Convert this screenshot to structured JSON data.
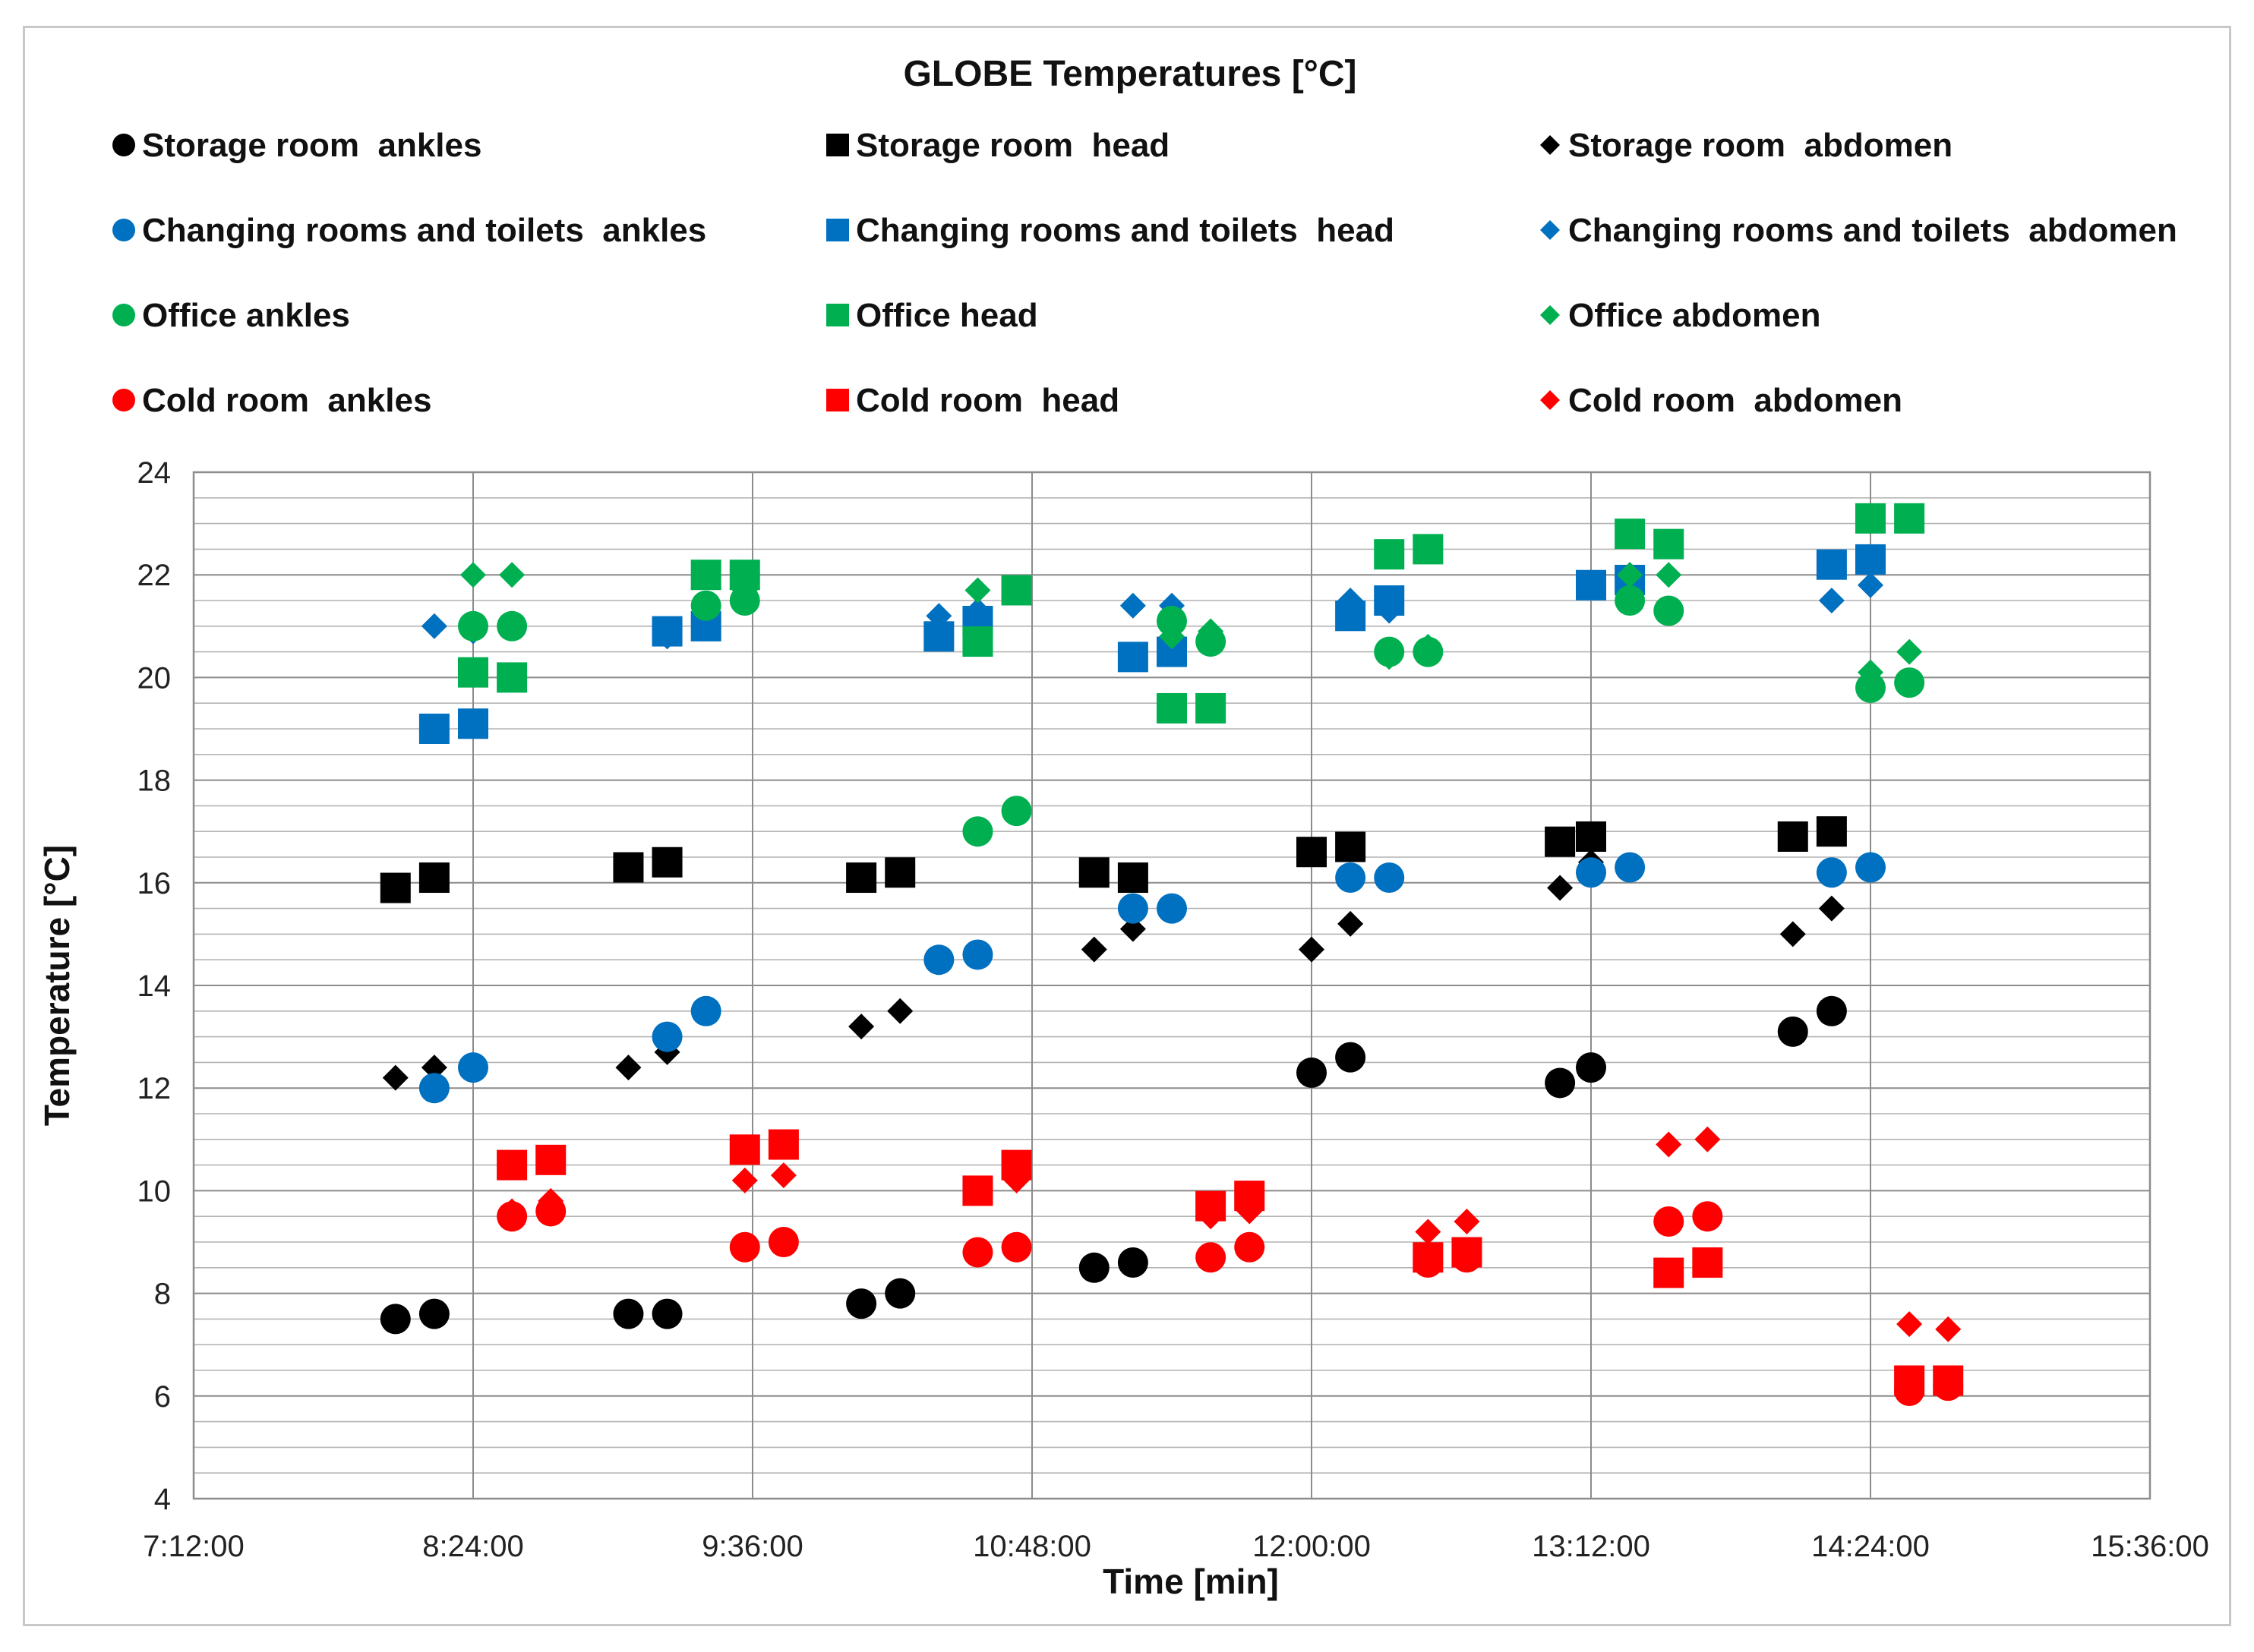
{
  "chart_data": {
    "type": "scatter",
    "title": "GLOBE Temperatures [°C]",
    "xlabel": "Time [min]",
    "ylabel": "Temperature [°C]",
    "xlim": [
      "7:12:00",
      "15:36:00"
    ],
    "x_ticks": [
      "7:12:00",
      "8:24:00",
      "9:36:00",
      "10:48:00",
      "12:00:00",
      "13:12:00",
      "14:24:00",
      "15:36:00"
    ],
    "ylim": [
      4,
      24
    ],
    "y_ticks": [
      4,
      6,
      8,
      10,
      12,
      14,
      16,
      18,
      20,
      22,
      24
    ],
    "grid": true,
    "legend_position": "top",
    "series": [
      {
        "name": "Storage room  ankles",
        "marker": "circle",
        "color": "#000000",
        "x": [
          "8:04:00",
          "8:14:00",
          "9:04:00",
          "9:14:00",
          "10:04:00",
          "10:14:00",
          "11:04:00",
          "11:14:00",
          "12:00:00",
          "12:10:00",
          "13:04:00",
          "13:12:00",
          "14:04:00",
          "14:14:00"
        ],
        "y": [
          7.5,
          7.6,
          7.6,
          7.6,
          7.8,
          8.0,
          8.5,
          8.6,
          12.3,
          12.6,
          12.1,
          12.4,
          13.1,
          13.5
        ]
      },
      {
        "name": "Storage room  head",
        "marker": "square",
        "color": "#000000",
        "x": [
          "8:04:00",
          "8:14:00",
          "9:04:00",
          "9:14:00",
          "10:04:00",
          "10:14:00",
          "11:04:00",
          "11:14:00",
          "12:00:00",
          "12:10:00",
          "13:04:00",
          "13:12:00",
          "14:04:00",
          "14:14:00"
        ],
        "y": [
          15.9,
          16.1,
          16.3,
          16.4,
          16.1,
          16.2,
          16.2,
          16.1,
          16.6,
          16.7,
          16.8,
          16.9,
          16.9,
          17.0
        ]
      },
      {
        "name": "Storage room  abdomen",
        "marker": "diamond",
        "color": "#000000",
        "x": [
          "8:04:00",
          "8:14:00",
          "9:04:00",
          "9:14:00",
          "10:04:00",
          "10:14:00",
          "11:04:00",
          "11:14:00",
          "12:00:00",
          "12:10:00",
          "13:04:00",
          "13:12:00",
          "14:04:00",
          "14:14:00"
        ],
        "y": [
          12.2,
          12.4,
          12.4,
          12.7,
          13.2,
          13.5,
          14.7,
          15.1,
          14.7,
          15.2,
          15.9,
          16.4,
          15.0,
          15.5
        ]
      },
      {
        "name": "Changing rooms and toilets  ankles",
        "marker": "circle",
        "color": "#0070C0",
        "x": [
          "8:14:00",
          "8:24:00",
          "9:14:00",
          "9:24:00",
          "10:24:00",
          "10:34:00",
          "11:14:00",
          "11:24:00",
          "12:10:00",
          "12:20:00",
          "13:12:00",
          "13:22:00",
          "14:14:00",
          "14:24:00"
        ],
        "y": [
          12.0,
          12.4,
          13.0,
          13.5,
          14.5,
          14.6,
          15.5,
          15.5,
          16.1,
          16.1,
          16.2,
          16.3,
          16.2,
          16.3
        ]
      },
      {
        "name": "Changing rooms and toilets  head",
        "marker": "square",
        "color": "#0070C0",
        "x": [
          "8:14:00",
          "8:24:00",
          "9:14:00",
          "9:24:00",
          "10:24:00",
          "10:34:00",
          "11:14:00",
          "11:24:00",
          "12:10:00",
          "12:20:00",
          "13:12:00",
          "13:22:00",
          "14:14:00",
          "14:24:00"
        ],
        "y": [
          19.0,
          19.1,
          20.9,
          21.0,
          20.8,
          21.1,
          20.4,
          20.5,
          21.2,
          21.5,
          21.8,
          21.9,
          22.2,
          22.3
        ]
      },
      {
        "name": "Changing rooms and toilets  abdomen",
        "marker": "diamond",
        "color": "#0070C0",
        "x": [
          "8:14:00",
          "8:24:00",
          "9:14:00",
          "9:24:00",
          "10:24:00",
          "10:34:00",
          "11:14:00",
          "11:24:00",
          "12:10:00",
          "12:20:00",
          "13:12:00",
          "13:22:00",
          "14:14:00",
          "14:24:00"
        ],
        "y": [
          21.0,
          20.9,
          20.8,
          21.1,
          21.2,
          21.3,
          21.4,
          21.4,
          21.5,
          21.3,
          21.8,
          22.0,
          21.5,
          21.8
        ]
      },
      {
        "name": "Office ankles",
        "marker": "circle",
        "color": "#00B050",
        "x": [
          "8:24:00",
          "8:34:00",
          "9:24:00",
          "9:34:00",
          "10:34:00",
          "10:44:00",
          "11:24:00",
          "11:34:00",
          "12:20:00",
          "12:30:00",
          "13:22:00",
          "13:32:00",
          "14:24:00",
          "14:34:00"
        ],
        "y": [
          21.0,
          21.0,
          21.4,
          21.5,
          17.0,
          17.4,
          21.1,
          20.7,
          20.5,
          20.5,
          21.5,
          21.3,
          19.8,
          19.9
        ]
      },
      {
        "name": "Office head",
        "marker": "square",
        "color": "#00B050",
        "x": [
          "8:24:00",
          "8:34:00",
          "9:24:00",
          "9:34:00",
          "10:34:00",
          "10:44:00",
          "11:24:00",
          "11:34:00",
          "12:20:00",
          "12:30:00",
          "13:22:00",
          "13:32:00",
          "14:24:00",
          "14:34:00"
        ],
        "y": [
          20.1,
          20.0,
          22.0,
          22.0,
          20.7,
          21.7,
          19.4,
          19.4,
          22.4,
          22.5,
          22.8,
          22.6,
          23.1,
          23.1
        ]
      },
      {
        "name": "Office abdomen",
        "marker": "diamond",
        "color": "#00B050",
        "x": [
          "8:24:00",
          "8:34:00",
          "9:24:00",
          "9:34:00",
          "10:34:00",
          "10:44:00",
          "11:24:00",
          "11:34:00",
          "12:20:00",
          "12:30:00",
          "13:22:00",
          "13:32:00",
          "14:24:00",
          "14:34:00"
        ],
        "y": [
          22.0,
          22.0,
          21.4,
          21.7,
          21.7,
          21.7,
          20.8,
          20.9,
          20.4,
          20.6,
          22.0,
          22.0,
          20.1,
          20.5
        ]
      },
      {
        "name": "Cold room  ankles",
        "marker": "circle",
        "color": "#FF0000",
        "x": [
          "8:34:00",
          "8:44:00",
          "9:34:00",
          "9:44:00",
          "10:34:00",
          "10:44:00",
          "11:34:00",
          "11:44:00",
          "12:30:00",
          "12:40:00",
          "13:32:00",
          "13:42:00",
          "14:34:00",
          "14:44:00"
        ],
        "y": [
          9.5,
          9.6,
          8.9,
          9.0,
          8.8,
          8.9,
          8.7,
          8.9,
          8.6,
          8.7,
          9.4,
          9.5,
          6.1,
          6.2
        ]
      },
      {
        "name": "Cold room  head",
        "marker": "square",
        "color": "#FF0000",
        "x": [
          "8:34:00",
          "8:44:00",
          "9:34:00",
          "9:44:00",
          "10:34:00",
          "10:44:00",
          "11:34:00",
          "11:44:00",
          "12:30:00",
          "12:40:00",
          "13:32:00",
          "13:42:00",
          "14:34:00",
          "14:44:00"
        ],
        "y": [
          10.5,
          10.6,
          10.8,
          10.9,
          10.0,
          10.5,
          9.7,
          9.9,
          8.7,
          8.8,
          8.4,
          8.6,
          6.3,
          6.3
        ]
      },
      {
        "name": "Cold room  abdomen",
        "marker": "diamond",
        "color": "#FF0000",
        "x": [
          "8:34:00",
          "8:44:00",
          "9:34:00",
          "9:44:00",
          "10:34:00",
          "10:44:00",
          "11:34:00",
          "11:44:00",
          "12:30:00",
          "12:40:00",
          "13:32:00",
          "13:42:00",
          "14:34:00",
          "14:44:00"
        ],
        "y": [
          9.6,
          9.8,
          10.2,
          10.3,
          10.0,
          10.2,
          9.5,
          9.6,
          9.2,
          9.4,
          10.9,
          11.0,
          7.4,
          7.3
        ]
      }
    ]
  }
}
